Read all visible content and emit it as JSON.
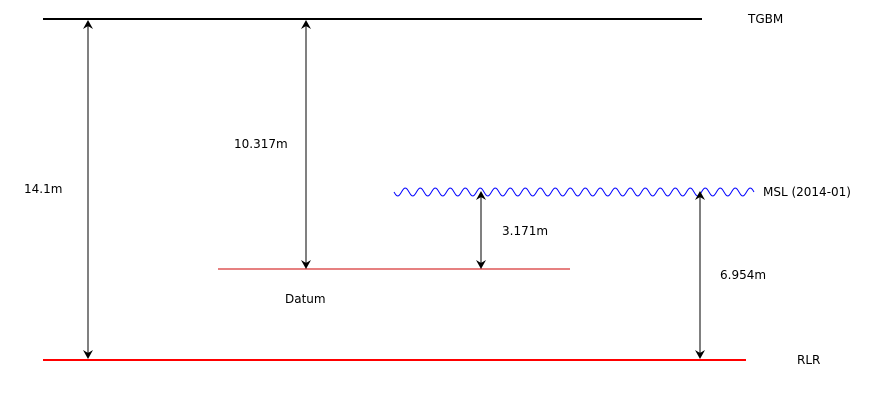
{
  "levels": {
    "tgbm": {
      "label": "TGBM",
      "color": "#000000"
    },
    "msl": {
      "label": "MSL (2014-01)",
      "color": "#0000ff"
    },
    "datum": {
      "label": "Datum",
      "color": "#cc0000"
    },
    "rlr": {
      "label": "RLR",
      "color": "#ff0000"
    }
  },
  "measurements": {
    "tgbm_to_rlr": "14.1m",
    "tgbm_to_datum": "10.317m",
    "datum_to_msl": "3.171m",
    "rlr_to_msl": "6.954m"
  },
  "arrow_color": "#000000"
}
